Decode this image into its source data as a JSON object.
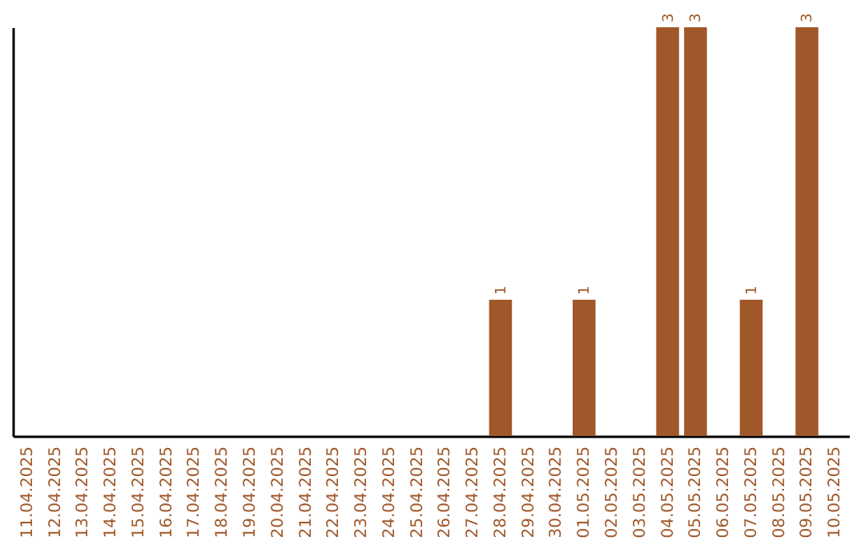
{
  "chart_data": {
    "type": "bar",
    "color": "#a0582a",
    "categories": [
      "11.04.2025",
      "12.04.2025",
      "13.04.2025",
      "14.04.2025",
      "15.04.2025",
      "16.04.2025",
      "17.04.2025",
      "18.04.2025",
      "19.04.2025",
      "20.04.2025",
      "21.04.2025",
      "22.04.2025",
      "23.04.2025",
      "24.04.2025",
      "25.04.2025",
      "26.04.2025",
      "27.04.2025",
      "28.04.2025",
      "29.04.2025",
      "30.04.2025",
      "01.05.2025",
      "02.05.2025",
      "03.05.2025",
      "04.05.2025",
      "05.05.2025",
      "06.05.2025",
      "07.05.2025",
      "08.05.2025",
      "09.05.2025",
      "10.05.2025"
    ],
    "values": [
      null,
      null,
      null,
      null,
      null,
      null,
      null,
      null,
      null,
      null,
      null,
      null,
      null,
      null,
      null,
      null,
      null,
      1,
      null,
      null,
      1,
      null,
      null,
      3,
      3,
      null,
      1,
      null,
      3,
      null
    ],
    "data_labels": true,
    "grid": false
  }
}
